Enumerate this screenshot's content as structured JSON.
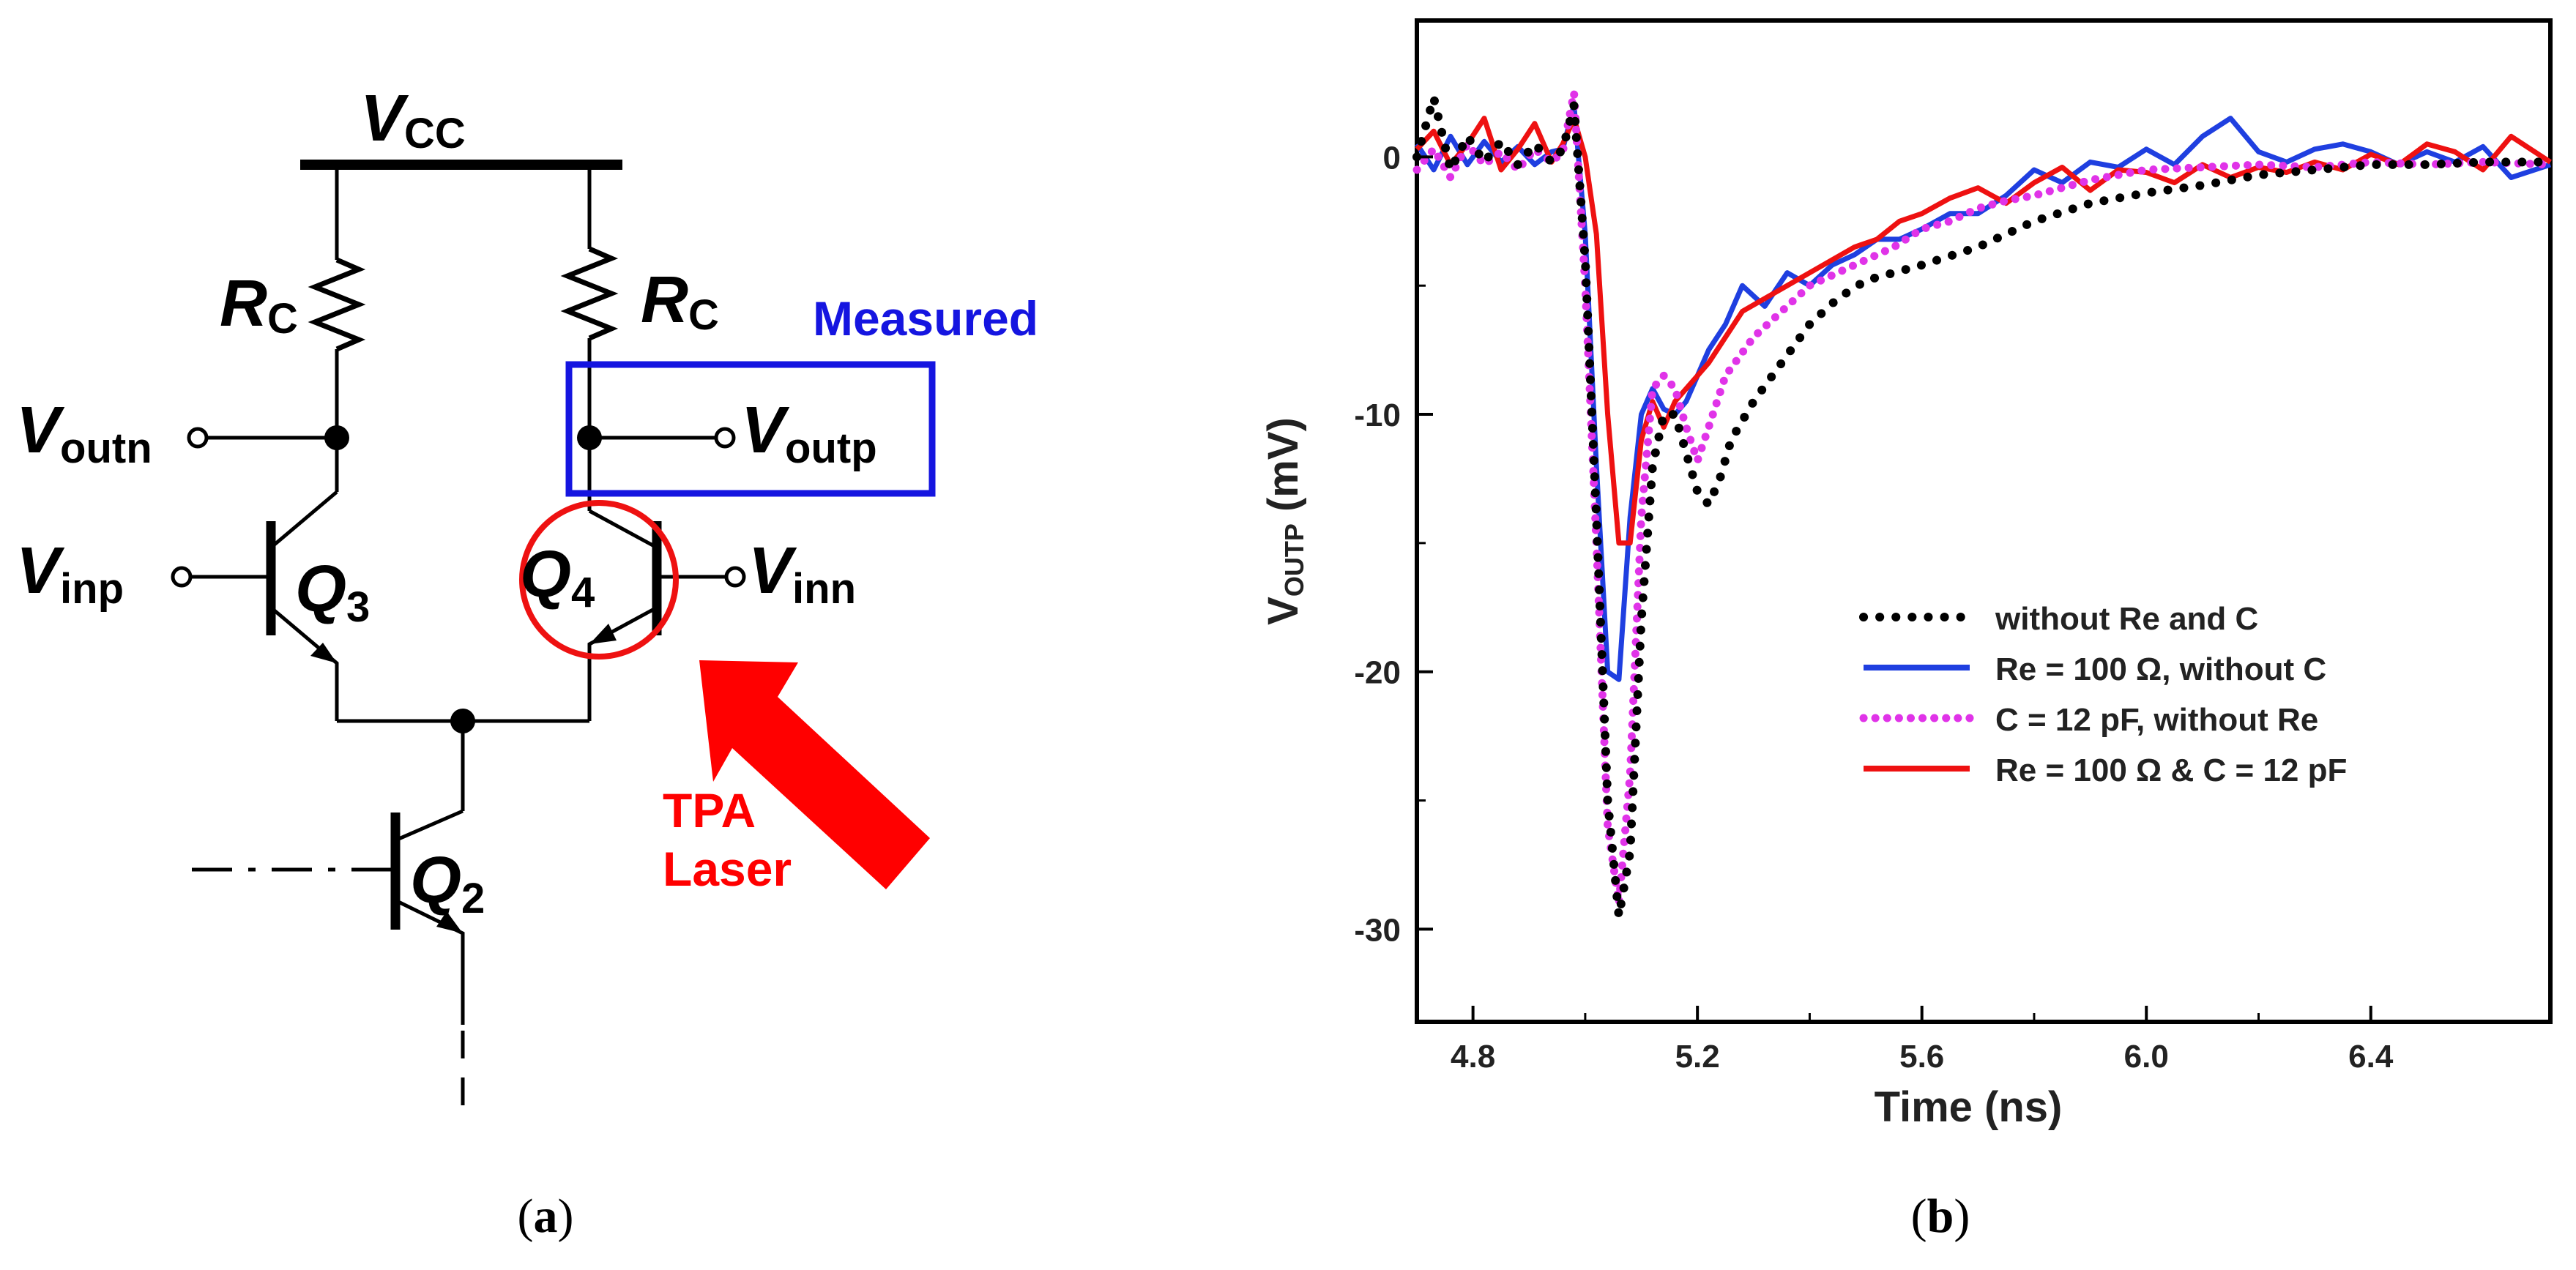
{
  "panel_a": {
    "caption": {
      "open": "(",
      "letter": "a",
      "close": ")"
    },
    "supply": {
      "main": "V",
      "sub": "CC"
    },
    "rc_left": {
      "main": "R",
      "sub": "C"
    },
    "rc_right": {
      "main": "R",
      "sub": "C"
    },
    "measured_label": "Measured",
    "voutn": {
      "main": "V",
      "sub": "outn"
    },
    "voutp": {
      "main": "V",
      "sub": "outp"
    },
    "vinp": {
      "main": "V",
      "sub": "inp"
    },
    "vinn": {
      "main": "V",
      "sub": "inn"
    },
    "q3": {
      "main": "Q",
      "sub": "3"
    },
    "q4": {
      "main": "Q",
      "sub": "4"
    },
    "q2": {
      "main": "Q",
      "sub": "2"
    },
    "laser": {
      "line1": "TPA",
      "line2": "Laser"
    },
    "colors": {
      "wire": "#000000",
      "measured": "#1515e0",
      "laser": "#ff0000"
    }
  },
  "panel_b": {
    "caption": {
      "open": "(",
      "letter": "b",
      "close": ")"
    }
  },
  "chart_data": {
    "type": "line",
    "title": "",
    "xlabel": "Time (ns)",
    "ylabel": {
      "main": "V",
      "sub": "OUTP",
      "unit": " (mV)"
    },
    "xlim": [
      4.7,
      6.72
    ],
    "ylim": [
      -33.6,
      5.3
    ],
    "xticks": [
      4.8,
      5.2,
      5.6,
      6.0,
      6.4
    ],
    "xtick_labels": [
      "4.8",
      "5.2",
      "5.6",
      "6.0",
      "6.4"
    ],
    "yticks": [
      0,
      -10,
      -20,
      -30
    ],
    "ytick_labels": [
      "0",
      "-10",
      "-20",
      "-30"
    ],
    "grid": false,
    "legend_position": "center-right",
    "series": [
      {
        "name": "without Re and C",
        "color": "#000000",
        "style": "dotted",
        "x": [
          4.7,
          4.73,
          4.76,
          4.79,
          4.82,
          4.85,
          4.88,
          4.91,
          4.94,
          4.96,
          4.98,
          5.0,
          5.02,
          5.04,
          5.06,
          5.08,
          5.1,
          5.12,
          5.14,
          5.16,
          5.18,
          5.2,
          5.22,
          5.24,
          5.26,
          5.3,
          5.35,
          5.4,
          5.45,
          5.5,
          5.55,
          5.6,
          5.7,
          5.8,
          5.9,
          6.0,
          6.1,
          6.2,
          6.3,
          6.4,
          6.5,
          6.6,
          6.72
        ],
        "y": [
          0,
          2.3,
          -0.5,
          0.8,
          -0.2,
          0.6,
          -0.3,
          0.5,
          -0.2,
          0.3,
          2.0,
          -4,
          -14,
          -25,
          -29.5,
          -27,
          -18,
          -12,
          -10,
          -10,
          -11.5,
          -13,
          -13.5,
          -12.5,
          -11,
          -9.5,
          -8,
          -6.5,
          -5.5,
          -4.8,
          -4.5,
          -4.2,
          -3.5,
          -2.5,
          -1.8,
          -1.4,
          -1.1,
          -0.7,
          -0.5,
          -0.3,
          -0.3,
          -0.2,
          -0.2
        ]
      },
      {
        "name": "Re = 100 Ω, without C",
        "color": "#1f3fe0",
        "style": "solid",
        "x": [
          4.7,
          4.73,
          4.76,
          4.79,
          4.82,
          4.85,
          4.88,
          4.91,
          4.94,
          4.96,
          4.98,
          5.0,
          5.02,
          5.04,
          5.06,
          5.08,
          5.1,
          5.12,
          5.14,
          5.16,
          5.18,
          5.2,
          5.22,
          5.25,
          5.28,
          5.32,
          5.36,
          5.4,
          5.44,
          5.48,
          5.52,
          5.56,
          5.6,
          5.65,
          5.7,
          5.75,
          5.8,
          5.85,
          5.9,
          5.95,
          6.0,
          6.05,
          6.1,
          6.15,
          6.2,
          6.25,
          6.3,
          6.35,
          6.4,
          6.45,
          6.5,
          6.55,
          6.6,
          6.65,
          6.72
        ],
        "y": [
          0.5,
          -0.5,
          0.8,
          -0.3,
          0.6,
          -0.2,
          0.4,
          -0.3,
          0.2,
          0.3,
          2.0,
          -3,
          -12,
          -20,
          -20.3,
          -14,
          -10,
          -9,
          -9.8,
          -10,
          -9.5,
          -8.5,
          -7.5,
          -6.5,
          -5,
          -5.8,
          -4.5,
          -5,
          -4.2,
          -3.8,
          -3.2,
          -3.2,
          -2.8,
          -2.2,
          -2.2,
          -1.5,
          -0.5,
          -1.0,
          -0.2,
          -0.4,
          0.3,
          -0.3,
          0.8,
          1.5,
          0.2,
          -0.2,
          0.3,
          0.5,
          0.2,
          -0.3,
          0.2,
          -0.2,
          0.4,
          -0.8,
          -0.3
        ]
      },
      {
        "name": "C = 12 pF, without Re",
        "color": "#e033e8",
        "style": "dotted",
        "x": [
          4.7,
          4.73,
          4.76,
          4.79,
          4.82,
          4.85,
          4.88,
          4.91,
          4.94,
          4.96,
          4.98,
          5.0,
          5.02,
          5.04,
          5.06,
          5.08,
          5.1,
          5.12,
          5.14,
          5.16,
          5.18,
          5.2,
          5.22,
          5.25,
          5.3,
          5.35,
          5.4,
          5.45,
          5.5,
          5.55,
          5.6,
          5.65,
          5.7,
          5.75,
          5.8,
          5.9,
          6.0,
          6.1,
          6.2,
          6.3,
          6.4,
          6.5,
          6.6,
          6.72
        ],
        "y": [
          -0.5,
          0.3,
          -0.8,
          0.5,
          -0.3,
          0.2,
          -0.5,
          0.3,
          -0.2,
          0.2,
          2.5,
          -5,
          -15,
          -26,
          -29,
          -24,
          -14,
          -9,
          -8.5,
          -9,
          -10.5,
          -11.8,
          -10.5,
          -8.5,
          -7,
          -6,
          -5,
          -4.5,
          -4,
          -3.5,
          -2.8,
          -2.5,
          -2,
          -1.7,
          -1.5,
          -0.9,
          -0.5,
          -0.4,
          -0.3,
          -0.4,
          -0.2,
          -0.3,
          -0.2,
          -0.3
        ]
      },
      {
        "name": "Re = 100 Ω & C = 12 pF",
        "color": "#ee1111",
        "style": "solid",
        "x": [
          4.7,
          4.73,
          4.76,
          4.79,
          4.82,
          4.85,
          4.88,
          4.91,
          4.94,
          4.96,
          4.98,
          5.0,
          5.02,
          5.04,
          5.06,
          5.08,
          5.1,
          5.12,
          5.14,
          5.16,
          5.18,
          5.2,
          5.22,
          5.25,
          5.28,
          5.32,
          5.36,
          5.4,
          5.44,
          5.48,
          5.52,
          5.56,
          5.6,
          5.65,
          5.7,
          5.75,
          5.8,
          5.85,
          5.9,
          5.95,
          6.0,
          6.05,
          6.1,
          6.15,
          6.2,
          6.25,
          6.3,
          6.35,
          6.4,
          6.45,
          6.5,
          6.55,
          6.6,
          6.65,
          6.72
        ],
        "y": [
          0.3,
          1.0,
          -0.3,
          0.5,
          1.5,
          -0.5,
          0.3,
          1.3,
          -0.2,
          0.5,
          1.5,
          0,
          -3,
          -10,
          -15,
          -15,
          -11,
          -9.5,
          -10.5,
          -9.5,
          -9,
          -8.5,
          -8,
          -7,
          -6,
          -5.5,
          -5,
          -4.5,
          -4,
          -3.5,
          -3.2,
          -2.5,
          -2.2,
          -1.6,
          -1.2,
          -1.8,
          -1.0,
          -0.4,
          -1.3,
          -0.5,
          -0.6,
          -1.0,
          -0.3,
          -0.8,
          -0.4,
          -0.6,
          -0.2,
          -0.5,
          0.1,
          -0.3,
          0.5,
          0.2,
          -0.5,
          0.8,
          -0.2
        ]
      }
    ]
  }
}
